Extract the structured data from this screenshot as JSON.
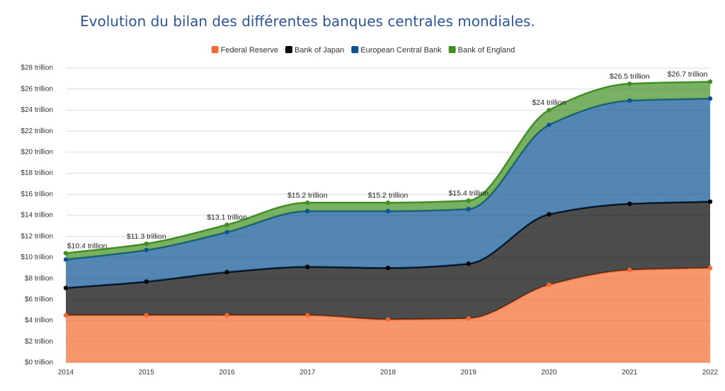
{
  "chart_data": {
    "type": "stacked-area",
    "title": "Evolution du bilan des différentes banques centrales mondiales.",
    "categories": [
      "2014",
      "2015",
      "2016",
      "2017",
      "2018",
      "2019",
      "2020",
      "2021",
      "2022"
    ],
    "series": [
      {
        "name": "Federal Reserve",
        "color": "#f26a2e",
        "values": [
          4.5,
          4.5,
          4.5,
          4.5,
          4.1,
          4.2,
          7.4,
          8.8,
          9.0
        ]
      },
      {
        "name": "Bank of Japan",
        "color": "#000000",
        "values": [
          2.6,
          3.2,
          4.1,
          4.6,
          4.9,
          5.2,
          6.7,
          6.3,
          6.3
        ]
      },
      {
        "name": "European Central Bank",
        "color": "#0b5394",
        "values": [
          2.7,
          3.0,
          3.8,
          5.3,
          5.4,
          5.2,
          8.5,
          9.8,
          9.8
        ]
      },
      {
        "name": "Bank of England",
        "color": "#3f8f22",
        "values": [
          0.6,
          0.6,
          0.7,
          0.8,
          0.8,
          0.8,
          1.4,
          1.6,
          1.6
        ]
      }
    ],
    "totals": {
      "values": [
        10.4,
        11.3,
        13.1,
        15.2,
        15.2,
        15.4,
        24,
        26.5,
        26.7
      ],
      "value_labels": [
        "$10.4 trillion",
        "$11.3 trillion",
        "$13.1 trillion",
        "$15.2 trillion",
        "$15.2 trillion",
        "$15.4 trillion",
        "$24 trillion",
        "$26.5 trillion",
        "$26.7 trillion"
      ]
    },
    "ylim": [
      0,
      28
    ],
    "yticks": [
      {
        "value": 0,
        "label": "$0 trillion"
      },
      {
        "value": 2,
        "label": "$2 trillion"
      },
      {
        "value": 4,
        "label": "$4 trillion"
      },
      {
        "value": 6,
        "label": "$6 trillion"
      },
      {
        "value": 8,
        "label": "$8 trillion"
      },
      {
        "value": 10,
        "label": "$10 trillion"
      },
      {
        "value": 12,
        "label": "$12 trillion"
      },
      {
        "value": 14,
        "label": "$14 trillion"
      },
      {
        "value": 16,
        "label": "$16 trillion"
      },
      {
        "value": 18,
        "label": "$18 trillion"
      },
      {
        "value": 20,
        "label": "$20 trillion"
      },
      {
        "value": 22,
        "label": "$22 trillion"
      },
      {
        "value": 24,
        "label": "$24 trillion"
      },
      {
        "value": 26,
        "label": "$26 trillion"
      },
      {
        "value": 28,
        "label": "$28 trillion"
      }
    ],
    "grid": true,
    "legend": "top"
  }
}
